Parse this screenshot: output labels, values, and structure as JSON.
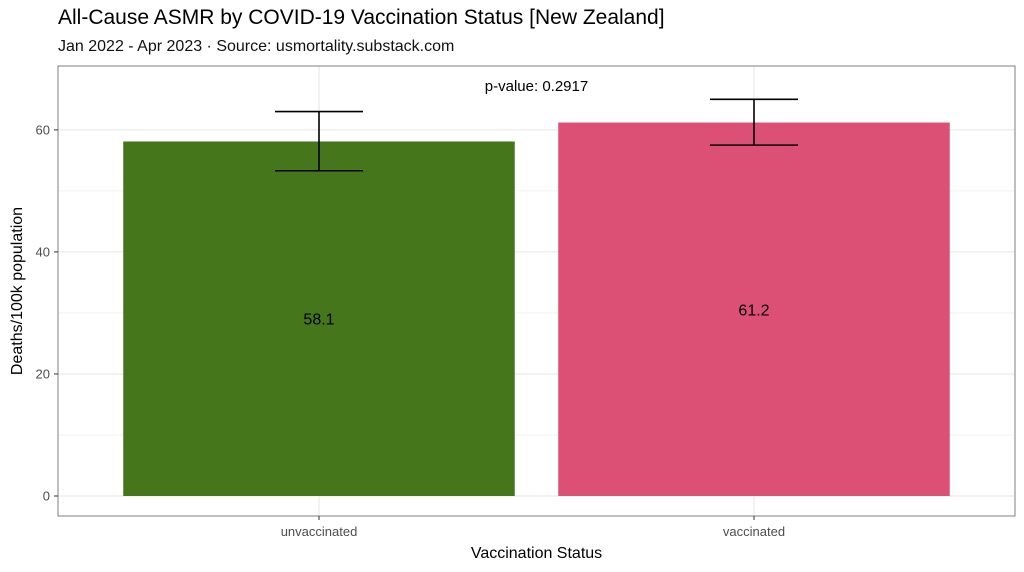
{
  "title": "All-Cause ASMR by COVID-19 Vaccination Status [New Zealand]",
  "subtitle": "Jan 2022 - Apr 2023 · Source: usmortality.substack.com",
  "chart_data": {
    "type": "bar",
    "title": "All-Cause ASMR by COVID-19 Vaccination Status [New Zealand]",
    "subtitle": "Jan 2022 - Apr 2023 · Source: usmortality.substack.com",
    "xlabel": "Vaccination Status",
    "ylabel": "Deaths/100k population",
    "categories": [
      "unvaccinated",
      "vaccinated"
    ],
    "values": [
      58.1,
      61.2
    ],
    "value_labels": [
      "58.1",
      "61.2"
    ],
    "error_bars": [
      {
        "low": 53.3,
        "high": 63.0
      },
      {
        "low": 57.5,
        "high": 65.0
      }
    ],
    "colors": [
      "#46761b",
      "#dc5076"
    ],
    "ylim": [
      0,
      68.5
    ],
    "yticks": [
      0,
      20,
      40,
      60
    ],
    "ytick_labels": [
      "0",
      "20",
      "40",
      "60"
    ],
    "annotation": "p-value: 0.2917",
    "grid": true,
    "legend": "none"
  }
}
